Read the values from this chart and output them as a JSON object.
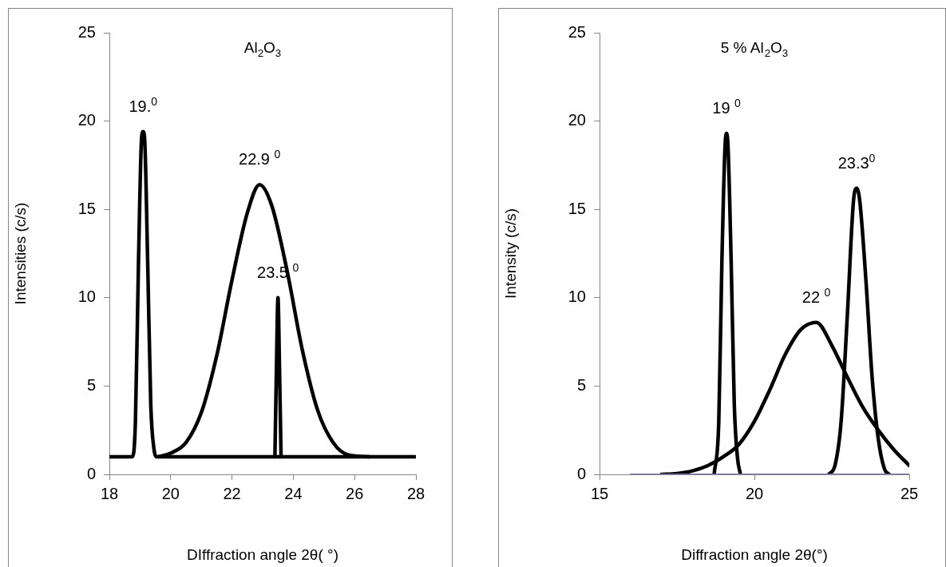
{
  "chart_data": [
    {
      "type": "line",
      "title": "Al$_{2}$O$_{3}$",
      "xlabel": "DIffraction angle 2θ( °)",
      "ylabel": "Intensities (c/s)",
      "xlim": [
        18,
        28
      ],
      "xticks": [
        18,
        20,
        22,
        24,
        26,
        28
      ],
      "ylim": [
        0,
        25
      ],
      "yticks": [
        0,
        5,
        10,
        15,
        20,
        25
      ],
      "grid": false,
      "legend": false,
      "marker": "none",
      "line_style": "solid",
      "series": [
        {
          "color": "#000000",
          "x": [
            18,
            18.75,
            18.85,
            18.95,
            19.05,
            19.1,
            19.15,
            19.25,
            19.35,
            19.45,
            19.55,
            28
          ],
          "values": [
            1,
            1,
            3,
            12,
            19,
            19.4,
            19,
            12,
            4,
            1.5,
            1,
            1
          ]
        },
        {
          "color": "#000000",
          "x": [
            19.6,
            20,
            20.5,
            21,
            21.5,
            22,
            22.5,
            22.9,
            23.3,
            23.8,
            24.3,
            24.8,
            25.3,
            25.8,
            26.5
          ],
          "values": [
            1,
            1.2,
            1.8,
            3.5,
            6.7,
            11,
            14.8,
            16.4,
            15.2,
            11.5,
            7,
            3.6,
            1.8,
            1.1,
            1
          ]
        },
        {
          "color": "#000000",
          "x": [
            23.4,
            23.45,
            23.5,
            23.55,
            23.6
          ],
          "values": [
            1,
            6,
            10,
            6,
            1
          ]
        }
      ],
      "annotations": [
        {
          "text": "19.$^{0}$",
          "x": 19.1,
          "y": 19.4
        },
        {
          "text": "22.9 $^{0}$",
          "x": 22.9,
          "y": 16.4
        },
        {
          "text": "23.5 $^{0}$",
          "x": 23.5,
          "y": 10
        }
      ]
    },
    {
      "type": "line",
      "title": "5 % Al$_{2}$O$_{3}$",
      "xlabel": "Diffraction angle 2θ(°)",
      "ylabel": "Intensity (c/s)",
      "xlim": [
        15,
        25
      ],
      "xticks": [
        15,
        20,
        25
      ],
      "ylim": [
        0,
        25
      ],
      "yticks": [
        0,
        5,
        10,
        15,
        20,
        25
      ],
      "grid": false,
      "legend": false,
      "marker": "none",
      "line_style": "solid",
      "series": [
        {
          "color": "#7f6fa8",
          "x": [
            16,
            25
          ],
          "values": [
            0,
            0
          ]
        },
        {
          "color": "#000000",
          "x": [
            18.7,
            18.85,
            18.95,
            19.05,
            19.1,
            19.15,
            19.25,
            19.35,
            19.45,
            19.55
          ],
          "values": [
            0,
            3,
            12,
            18.5,
            19.3,
            18.5,
            12,
            4,
            1,
            0
          ]
        },
        {
          "color": "#000000",
          "x": [
            17,
            17.5,
            18,
            18.5,
            19,
            19.5,
            20,
            20.5,
            21,
            21.5,
            22,
            22.5,
            23,
            23.5,
            24,
            24.5,
            25
          ],
          "values": [
            0,
            0.05,
            0.2,
            0.5,
            1,
            1.7,
            3,
            4.8,
            6.8,
            8.2,
            8.6,
            7.3,
            5.5,
            3.8,
            2.5,
            1.4,
            0.5
          ]
        },
        {
          "color": "#000000",
          "x": [
            22.4,
            22.6,
            22.8,
            23,
            23.2,
            23.3,
            23.4,
            23.6,
            23.8,
            24,
            24.2,
            24.35
          ],
          "values": [
            0,
            0.5,
            3,
            9,
            15.5,
            16.2,
            15.5,
            11,
            5.5,
            2,
            0.3,
            0
          ]
        }
      ],
      "annotations": [
        {
          "text": "19 $^{0}$",
          "x": 19.1,
          "y": 19.3
        },
        {
          "text": "22 $^{0}$",
          "x": 22,
          "y": 8.6
        },
        {
          "text": "23.3$^{0}$",
          "x": 23.3,
          "y": 16.2
        }
      ]
    }
  ]
}
